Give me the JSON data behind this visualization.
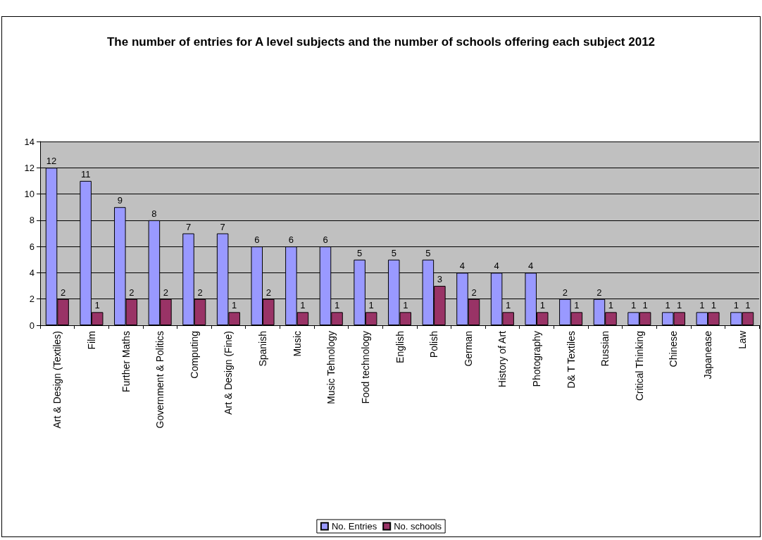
{
  "chart_data": {
    "type": "bar",
    "title": "The number of entries for A level subjects and the number of schools offering each subject 2012",
    "categories": [
      "Art & Design (Textiles)",
      "Film",
      "Further Maths",
      "Government & Politics",
      "Computing",
      "Art & Design (Fine)",
      "Spanish",
      "Music",
      "Music Tehnology",
      "Food technology",
      "English",
      "Polish",
      "German",
      "History of Art",
      "Photography",
      "D& T Textiles",
      "Russian",
      "Critical Thinking",
      "Chinese",
      "Japanease",
      "Law"
    ],
    "series": [
      {
        "name": "No. Entries",
        "color": "#9999ff",
        "values": [
          12,
          11,
          9,
          8,
          7,
          7,
          6,
          6,
          6,
          5,
          5,
          5,
          4,
          4,
          4,
          2,
          2,
          1,
          1,
          1,
          1
        ]
      },
      {
        "name": "No. schools",
        "color": "#993366",
        "values": [
          2,
          1,
          2,
          2,
          2,
          1,
          2,
          1,
          1,
          1,
          1,
          3,
          2,
          1,
          1,
          1,
          1,
          1,
          1,
          1,
          1
        ]
      }
    ],
    "ylim": [
      0,
      14
    ],
    "yticks": [
      0,
      2,
      4,
      6,
      8,
      10,
      12,
      14
    ],
    "grid": "y",
    "legend": "bottom",
    "data_labels": true
  }
}
